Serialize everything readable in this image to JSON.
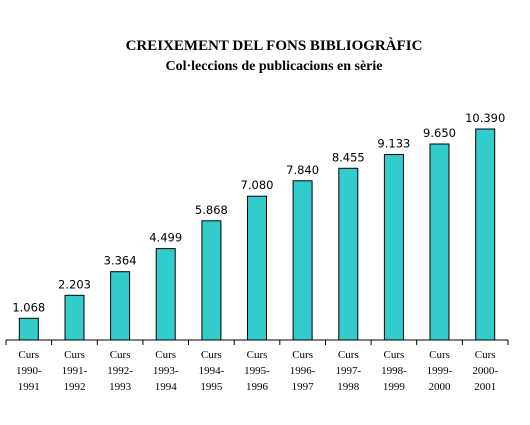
{
  "chart_data": {
    "type": "bar",
    "title": "CREIXEMENT DEL FONS BIBLIOGRÀFIC",
    "subtitle": "Col·leccions de publicacions en sèrie",
    "categories": [
      [
        "Curs",
        "1990-",
        "1991"
      ],
      [
        "Curs",
        "1991-",
        "1992"
      ],
      [
        "Curs",
        "1992-",
        "1993"
      ],
      [
        "Curs",
        "1993-",
        "1994"
      ],
      [
        "Curs",
        "1994-",
        "1995"
      ],
      [
        "Curs",
        "1995-",
        "1996"
      ],
      [
        "Curs",
        "1996-",
        "1997"
      ],
      [
        "Curs",
        "1997-",
        "1998"
      ],
      [
        "Curs",
        "1998-",
        "1999"
      ],
      [
        "Curs",
        "1999-",
        "2000"
      ],
      [
        "Curs",
        "2000-",
        "2001"
      ]
    ],
    "values": [
      1068,
      2203,
      3364,
      4499,
      5868,
      7080,
      7840,
      8455,
      9133,
      9650,
      10390
    ],
    "labels": [
      "1.068",
      "2.203",
      "3.364",
      "4.499",
      "5.868",
      "7.080",
      "7.840",
      "8.455",
      "9.133",
      "9.650",
      "10.390"
    ],
    "xlabel": "",
    "ylabel": "",
    "ylim": [
      0,
      10390
    ],
    "grid": false,
    "legend": "none",
    "colors": {
      "bar_fill": "#33cccc",
      "bar_stroke": "#000000",
      "axis": "#000000"
    }
  }
}
